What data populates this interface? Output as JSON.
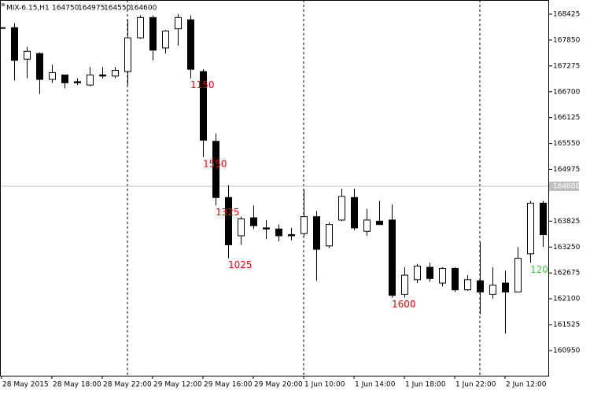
{
  "chart_data": {
    "type": "candlestick",
    "symbol": "MIX-6.15,H1",
    "ohlc": [
      164750,
      164975,
      164550,
      164600
    ],
    "current_price": 164600,
    "ylim": [
      160390,
      168740
    ],
    "yticks": [
      168425,
      167850,
      167275,
      166700,
      166125,
      165550,
      164975,
      163825,
      163250,
      162675,
      162100,
      161525,
      160950
    ],
    "up_color": "#ffffff",
    "down_color": "#000000",
    "categories": [
      "28 May 2015",
      null,
      null,
      null,
      "28 May 18:00",
      null,
      null,
      null,
      "28 May 22:00",
      null,
      null,
      null,
      "29 May 12:00",
      null,
      null,
      null,
      "29 May 16:00",
      null,
      null,
      null,
      "29 May 20:00",
      null,
      null,
      null,
      "1 Jun 10:00",
      null,
      null,
      null,
      "1 Jun 14:00",
      null,
      null,
      null,
      "1 Jun 18:00",
      null,
      null,
      null,
      "1 Jun 22:00",
      null,
      null,
      null,
      "2 Jun 12:00",
      null,
      null,
      null
    ],
    "open": [
      168125,
      168125,
      167425,
      167550,
      166975,
      167075,
      166925,
      166850,
      167075,
      167050,
      167150,
      167900,
      168350,
      167675,
      168100,
      168300,
      167150,
      165600,
      164350,
      163500,
      163900,
      163675,
      163650,
      163525,
      163550,
      163925,
      163275,
      163850,
      164350,
      163600,
      163825,
      163850,
      162200,
      162525,
      162800,
      162450,
      162775,
      162300,
      162500,
      162200,
      162450,
      162250,
      163100,
      164225
    ],
    "high": [
      168125,
      168225,
      167700,
      167575,
      167300,
      167075,
      167000,
      167250,
      167250,
      167250,
      168300,
      168400,
      168400,
      168075,
      168425,
      168400,
      167200,
      165775,
      164625,
      163925,
      164175,
      163850,
      163750,
      163675,
      164525,
      164050,
      163800,
      164550,
      164550,
      164100,
      164275,
      164200,
      162800,
      162875,
      162900,
      162800,
      162800,
      162625,
      163350,
      162800,
      162725,
      163250,
      164275,
      164275
    ],
    "low": [
      168125,
      166950,
      167000,
      166650,
      166900,
      166775,
      166850,
      166825,
      167000,
      167000,
      166850,
      167875,
      167400,
      167550,
      167725,
      167000,
      165250,
      164175,
      163000,
      163300,
      163650,
      163425,
      163375,
      163400,
      163500,
      162500,
      163225,
      163825,
      163625,
      163500,
      163750,
      162125,
      162125,
      162450,
      162475,
      162375,
      162250,
      162275,
      161750,
      162100,
      161325,
      162250,
      162900,
      163250
    ],
    "close": [
      168125,
      167400,
      167600,
      166975,
      167125,
      166900,
      166900,
      167075,
      167050,
      167175,
      167900,
      168350,
      167625,
      168050,
      168350,
      167200,
      165625,
      164350,
      163300,
      163875,
      163725,
      163650,
      163500,
      163500,
      163925,
      163200,
      163750,
      164375,
      163675,
      163850,
      163750,
      162175,
      162625,
      162825,
      162550,
      162775,
      162300,
      162525,
      162250,
      162400,
      162250,
      163000,
      164225,
      163525
    ],
    "annotations": [
      {
        "index": 15,
        "text": "1150",
        "color": "#ff0000"
      },
      {
        "index": 16,
        "text": "1550",
        "color": "#ff0000"
      },
      {
        "index": 17,
        "text": "1325",
        "color": "#ff0000"
      },
      {
        "index": 18,
        "text": "1025",
        "color": "#ff0000"
      },
      {
        "index": 31,
        "text": "1600",
        "color": "#ff0000"
      },
      {
        "index": 42,
        "text": "120",
        "color": "#32cd32"
      }
    ]
  }
}
